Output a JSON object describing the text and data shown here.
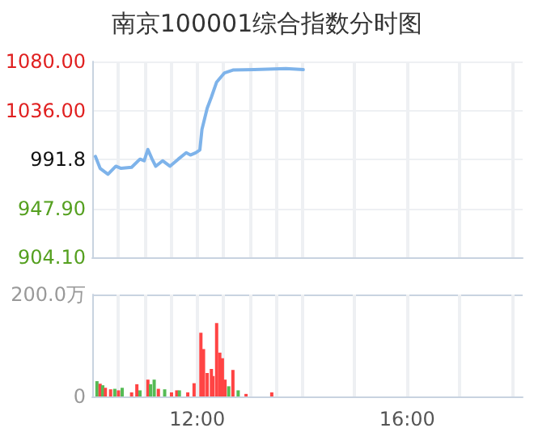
{
  "chart_data": [
    {
      "type": "line",
      "title": "南京100001综合指数分时图",
      "grid": true,
      "marker": "none",
      "line_style": "solid",
      "tick_labels": "y",
      "x": [
        10.06,
        10.15,
        10.3,
        10.45,
        10.55,
        10.75,
        10.91,
        10.99,
        11.06,
        11.14,
        11.21,
        11.34,
        11.48,
        11.64,
        11.79,
        11.87,
        11.97,
        12.05,
        12.09,
        12.19,
        12.27,
        12.37,
        12.52,
        12.68,
        13.09,
        13.69,
        14.02
      ],
      "series": [
        {
          "color": "#7eb3ea",
          "values": [
            994.7,
            984,
            978.7,
            985.9,
            984,
            985,
            992.3,
            990.8,
            1001,
            992.3,
            985.9,
            990.8,
            985.9,
            992.3,
            998,
            996,
            998,
            1000.5,
            1019,
            1038,
            1048,
            1061.5,
            1069.8,
            1072.3,
            1072.7,
            1073.7,
            1072.7
          ]
        }
      ],
      "xlim": [
        10,
        18.2
      ],
      "xticks": [
        {
          "value": 10.5,
          "label": null
        },
        {
          "value": 11,
          "label": null
        },
        {
          "value": 11.5,
          "label": null
        },
        {
          "value": 12,
          "label": null
        },
        {
          "value": 12.5,
          "label": null
        },
        {
          "value": 13,
          "label": null
        },
        {
          "value": 13.5,
          "label": null
        },
        {
          "value": 14,
          "label": null
        },
        {
          "value": 15,
          "label": null
        },
        {
          "value": 16,
          "label": null
        },
        {
          "value": 17,
          "label": null
        },
        {
          "value": 18,
          "label": null
        }
      ],
      "ylim": [
        904.1,
        1080
      ],
      "yticks": [
        {
          "value": 904.1,
          "label": "904.10"
        },
        {
          "value": 947.9,
          "label": "947.90"
        },
        {
          "value": 991.8,
          "label": "991.8"
        },
        {
          "value": 1036,
          "label": "1036.00"
        },
        {
          "value": 1080,
          "label": "1080.00"
        }
      ]
    },
    {
      "type": "bar",
      "grid": true,
      "x": [
        10.09,
        10.15,
        10.2,
        10.25,
        10.35,
        10.43,
        10.5,
        10.57,
        10.75,
        10.85,
        10.91,
        11.06,
        11.11,
        11.18,
        11.26,
        11.38,
        11.51,
        11.61,
        11.66,
        11.82,
        11.94,
        12.07,
        12.12,
        12.19,
        12.27,
        12.3,
        12.37,
        12.43,
        12.48,
        12.53,
        12.6,
        12.68,
        12.78,
        12.93,
        13.42
      ],
      "values": [
        30,
        25,
        22,
        17,
        14,
        15,
        12,
        17,
        8,
        24,
        12,
        33,
        24,
        33,
        15,
        14,
        8,
        12,
        12,
        8,
        26,
        125,
        93,
        46,
        54,
        40,
        144,
        86,
        75,
        33,
        20,
        52,
        12,
        5,
        8
      ],
      "colors": [
        "#55bb55",
        "#ff4444",
        "#55bb55",
        "#ff4444",
        "#ff4444",
        "#55bb55",
        "#ff4444",
        "#55bb55",
        "#ff4444",
        "#ff4444",
        "#55bb55",
        "#ff4444",
        "#55bb55",
        "#55bb55",
        "#ff4444",
        "#55bb55",
        "#ff4444",
        "#ff4444",
        "#55bb55",
        "#ff4444",
        "#ff4444",
        "#ff4444",
        "#ff4444",
        "#ff4444",
        "#ff4444",
        "#ff4444",
        "#ff4444",
        "#ff4444",
        "#ff4444",
        "#ff4444",
        "#55bb55",
        "#ff4444",
        "#55bb55",
        "#ff4444",
        "#ff4444"
      ],
      "xlim": [
        10,
        18.2
      ],
      "xticks": [
        {
          "value": 10.5,
          "label": null
        },
        {
          "value": 11,
          "label": null
        },
        {
          "value": 11.5,
          "label": null
        },
        {
          "value": 12,
          "label": "12:00"
        },
        {
          "value": 12.5,
          "label": null
        },
        {
          "value": 13,
          "label": null
        },
        {
          "value": 13.5,
          "label": null
        },
        {
          "value": 14,
          "label": null
        },
        {
          "value": 15,
          "label": null
        },
        {
          "value": 16,
          "label": "16:00"
        },
        {
          "value": 17,
          "label": null
        },
        {
          "value": 18,
          "label": null
        }
      ],
      "ylim": [
        0,
        200
      ],
      "yticks": [
        {
          "value": 0,
          "label": "0"
        },
        {
          "value": 200,
          "label": "200.0万"
        }
      ]
    }
  ]
}
